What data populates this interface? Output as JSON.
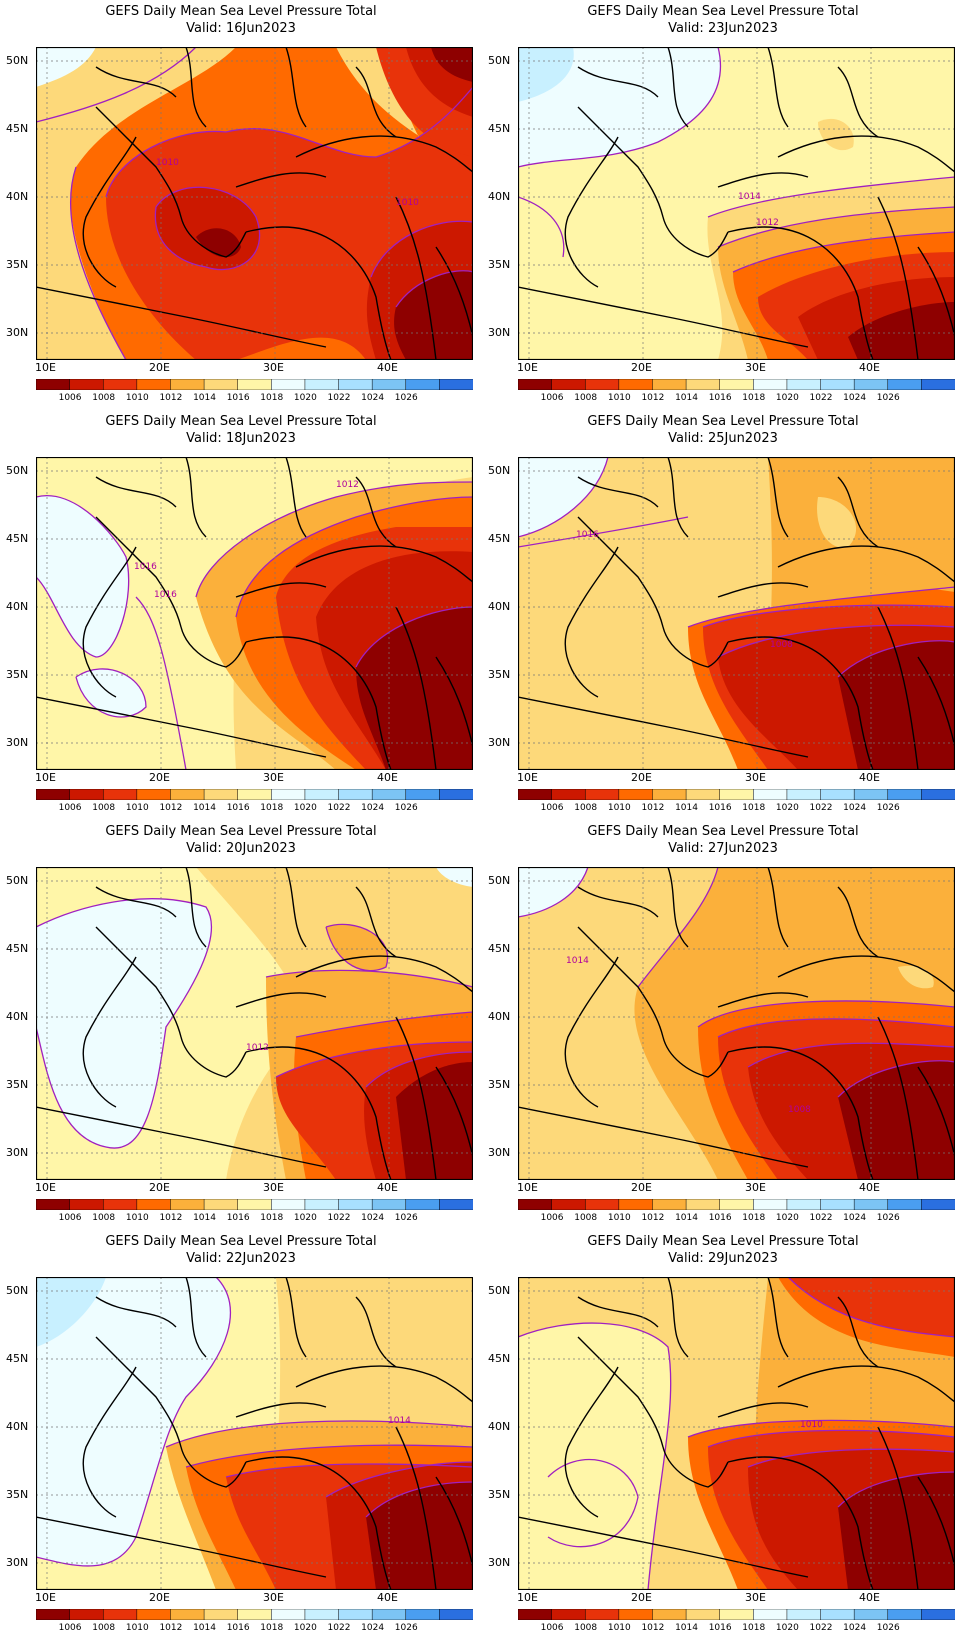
{
  "title": "GEFS Daily Mean Sea Level Pressure Total",
  "lat_labels": [
    "50N",
    "45N",
    "40N",
    "35N",
    "30N"
  ],
  "lon_labels": [
    "10E",
    "20E",
    "30E",
    "40E"
  ],
  "colorbar": {
    "labels": [
      "1006",
      "1008",
      "1010",
      "1012",
      "1014",
      "1016",
      "1018",
      "1020",
      "1022",
      "1024",
      "1026"
    ],
    "colors": [
      "#8e0000",
      "#cc1800",
      "#e8330a",
      "#ff6a00",
      "#fbb03b",
      "#fdd97a",
      "#fff6a8",
      "#eefdff",
      "#c8f0ff",
      "#a8e0ff",
      "#7cc4f4",
      "#4a9ef0",
      "#2a6fe0"
    ]
  },
  "contour_color": "#a020c0",
  "panels": [
    {
      "valid": "Valid: 16Jun2023",
      "labels": [
        "1010",
        "1010"
      ]
    },
    {
      "valid": "Valid: 23Jun2023",
      "labels": [
        "1014",
        "1012"
      ]
    },
    {
      "valid": "Valid: 18Jun2023",
      "labels": [
        "1012",
        "1016",
        "1016"
      ]
    },
    {
      "valid": "Valid: 25Jun2023",
      "labels": [
        "1016",
        "1008"
      ]
    },
    {
      "valid": "Valid: 20Jun2023",
      "labels": [
        "1012"
      ]
    },
    {
      "valid": "Valid: 27Jun2023",
      "labels": [
        "1014",
        "1008"
      ]
    },
    {
      "valid": "Valid: 22Jun2023",
      "labels": [
        "1014"
      ]
    },
    {
      "valid": "Valid: 29Jun2023",
      "labels": [
        "1010"
      ]
    }
  ]
}
